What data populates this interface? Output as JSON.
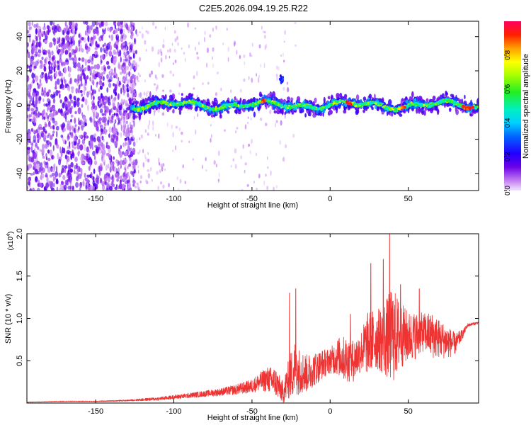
{
  "figure": {
    "title": "C2E5.2026.094.19.25.R22"
  },
  "chart_data": [
    {
      "type": "heatmap",
      "name": "spectrogram",
      "xlabel": "Height of straight line (km)",
      "ylabel": "Frequency (Hz)",
      "xlim": [
        -194,
        95
      ],
      "ylim": [
        -50,
        49
      ],
      "xticks": [
        -150,
        -100,
        -50,
        0,
        50
      ],
      "xtick_labels": [
        "-150",
        "-100",
        "-50",
        "0",
        "50"
      ],
      "yticks": [
        -40,
        -20,
        0,
        20,
        40
      ],
      "ytick_labels": [
        "-40",
        "-20",
        "0",
        "20",
        "40"
      ],
      "colorbar": {
        "label": "Normalized spectral amplitude",
        "range": [
          0,
          1
        ],
        "ticks": [
          0,
          0.2,
          0.4,
          0.6,
          0.8
        ],
        "tick_labels": [
          "0.0",
          "0.2",
          "0.4",
          "0.6",
          "0.8"
        ],
        "colormap": "rainbow"
      },
      "features": {
        "noise_region_x": [
          -194,
          -128
        ],
        "band_center_hz": 0,
        "band_start_x": -128,
        "burst": {
          "x": -31,
          "y": 15
        },
        "max_amplitude_segments_x": [
          [
            -44,
            -40
          ],
          [
            10,
            14
          ],
          [
            45,
            48
          ],
          [
            85,
            92
          ]
        ]
      },
      "grid": false,
      "legend": "none"
    },
    {
      "type": "line",
      "name": "snr",
      "xlabel": "Height of straight line (km)",
      "ylabel": "SNR (10 * v/v)",
      "y_multiplier": "(x10",
      "y_multiplier_exp": "4",
      "multiplier_suffix": ")",
      "xlim": [
        -194,
        95
      ],
      "ylim": [
        0,
        2.0
      ],
      "xticks": [
        -150,
        -100,
        -50,
        0,
        50
      ],
      "xtick_labels": [
        "-150",
        "-100",
        "-50",
        "0",
        "50"
      ],
      "yticks": [
        0.5,
        1.0,
        1.5,
        2.0
      ],
      "ytick_labels": [
        "0.5",
        "1.0",
        "1.5",
        "2.0"
      ],
      "color": "#ee3333",
      "envelope": {
        "x": [
          -194,
          -170,
          -150,
          -130,
          -120,
          -110,
          -100,
          -90,
          -80,
          -70,
          -60,
          -50,
          -45,
          -40,
          -35,
          -30,
          -28,
          -25,
          -22,
          -20,
          -15,
          -10,
          -5,
          0,
          5,
          10,
          15,
          20,
          25,
          30,
          35,
          40,
          45,
          50,
          55,
          60,
          65,
          70,
          75,
          80,
          85,
          88,
          95
        ],
        "center": [
          0.01,
          0.02,
          0.02,
          0.03,
          0.04,
          0.05,
          0.07,
          0.09,
          0.11,
          0.13,
          0.16,
          0.2,
          0.25,
          0.28,
          0.25,
          0.12,
          0.22,
          0.34,
          0.42,
          0.38,
          0.35,
          0.4,
          0.46,
          0.5,
          0.55,
          0.52,
          0.5,
          0.62,
          0.72,
          0.75,
          0.76,
          0.8,
          0.8,
          0.78,
          0.8,
          0.84,
          0.8,
          0.76,
          0.72,
          0.7,
          0.82,
          0.92,
          0.95
        ],
        "spread": [
          0.005,
          0.01,
          0.01,
          0.015,
          0.03,
          0.04,
          0.05,
          0.06,
          0.07,
          0.09,
          0.12,
          0.16,
          0.22,
          0.3,
          0.35,
          0.25,
          0.4,
          0.55,
          0.7,
          0.55,
          0.45,
          0.4,
          0.35,
          0.3,
          0.45,
          0.55,
          0.5,
          0.5,
          0.8,
          0.7,
          0.9,
          1.15,
          0.8,
          0.6,
          0.55,
          0.45,
          0.55,
          0.45,
          0.4,
          0.25,
          0.1,
          0.04,
          0.03
        ]
      },
      "peaks": [
        {
          "x": -26,
          "y": 1.3
        },
        {
          "x": -22,
          "y": 1.35
        },
        {
          "x": 13,
          "y": 1.05
        },
        {
          "x": 26,
          "y": 1.65
        },
        {
          "x": 34,
          "y": 1.7
        },
        {
          "x": 38,
          "y": 2.0
        },
        {
          "x": 45,
          "y": 1.4
        },
        {
          "x": 57,
          "y": 1.35
        }
      ],
      "grid": false,
      "legend": "none"
    }
  ]
}
